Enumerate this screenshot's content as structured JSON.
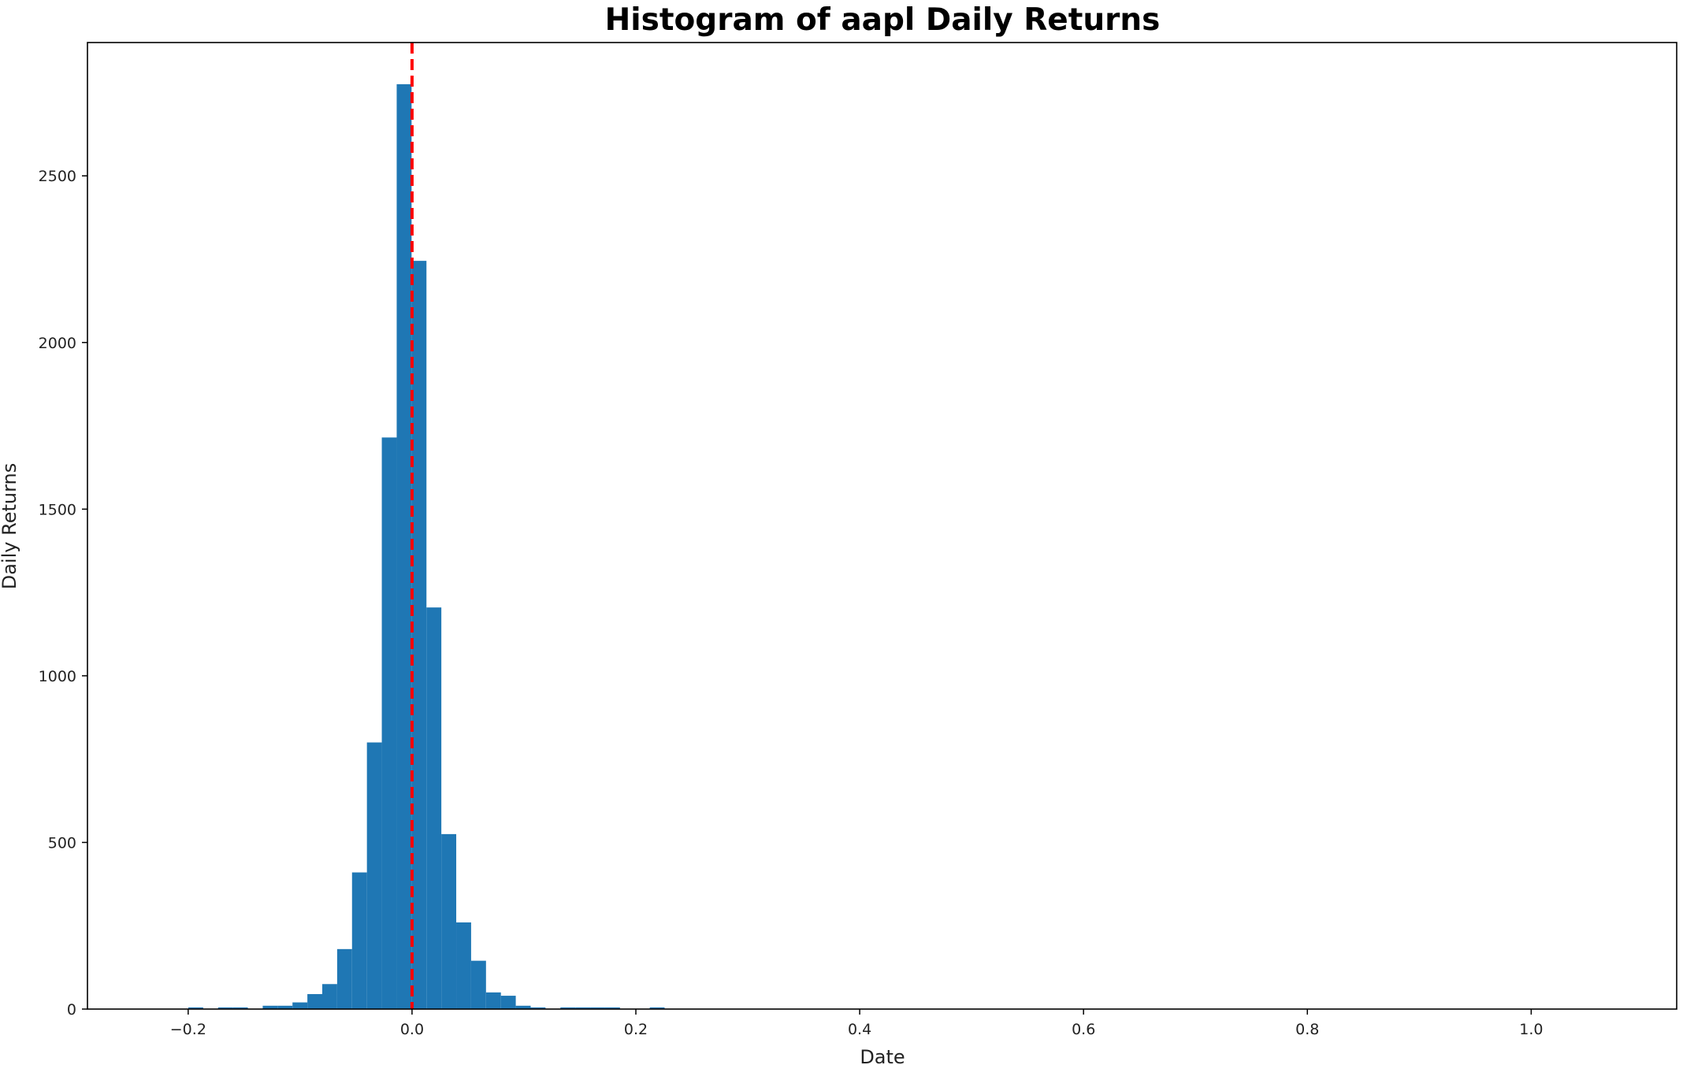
{
  "chart_data": {
    "type": "bar",
    "title": "Histogram of aapl Daily Returns",
    "xlabel": "Date",
    "ylabel": "Daily Returns",
    "xlim": [
      -0.29,
      1.13
    ],
    "ylim": [
      0,
      2900
    ],
    "xticks": [
      -0.2,
      0.0,
      0.2,
      0.4,
      0.6,
      0.8,
      1.0
    ],
    "xtick_labels": [
      "−0.2",
      "0.0",
      "0.2",
      "0.4",
      "0.6",
      "0.8",
      "1.0"
    ],
    "yticks": [
      0,
      500,
      1000,
      1500,
      2000,
      2500
    ],
    "ytick_labels": [
      "0",
      "500",
      "1000",
      "1500",
      "2000",
      "2500"
    ],
    "bar_color": "#1f77b4",
    "bin_edges": [
      -0.1999,
      -0.1866,
      -0.1733,
      -0.16,
      -0.1467,
      -0.1334,
      -0.1201,
      -0.1068,
      -0.0935,
      -0.0802,
      -0.0669,
      -0.0536,
      -0.0403,
      -0.027,
      -0.0137,
      -0.0004,
      0.0129,
      0.0262,
      0.0395,
      0.0528,
      0.0661,
      0.0794,
      0.0927,
      0.106,
      0.1193,
      0.1326,
      0.1459,
      0.1592,
      0.1725,
      0.1858,
      0.1991,
      0.2124,
      0.2257
    ],
    "counts": [
      5,
      0,
      5,
      5,
      0,
      10,
      10,
      20,
      45,
      75,
      180,
      410,
      800,
      1715,
      2775,
      2245,
      1205,
      525,
      260,
      145,
      50,
      40,
      10,
      5,
      0,
      5,
      5,
      5,
      5,
      0,
      0,
      5
    ],
    "reference_line": {
      "x": 0.0,
      "color": "#ff0000",
      "style": "dashed"
    },
    "grid": false,
    "legend": "none"
  }
}
